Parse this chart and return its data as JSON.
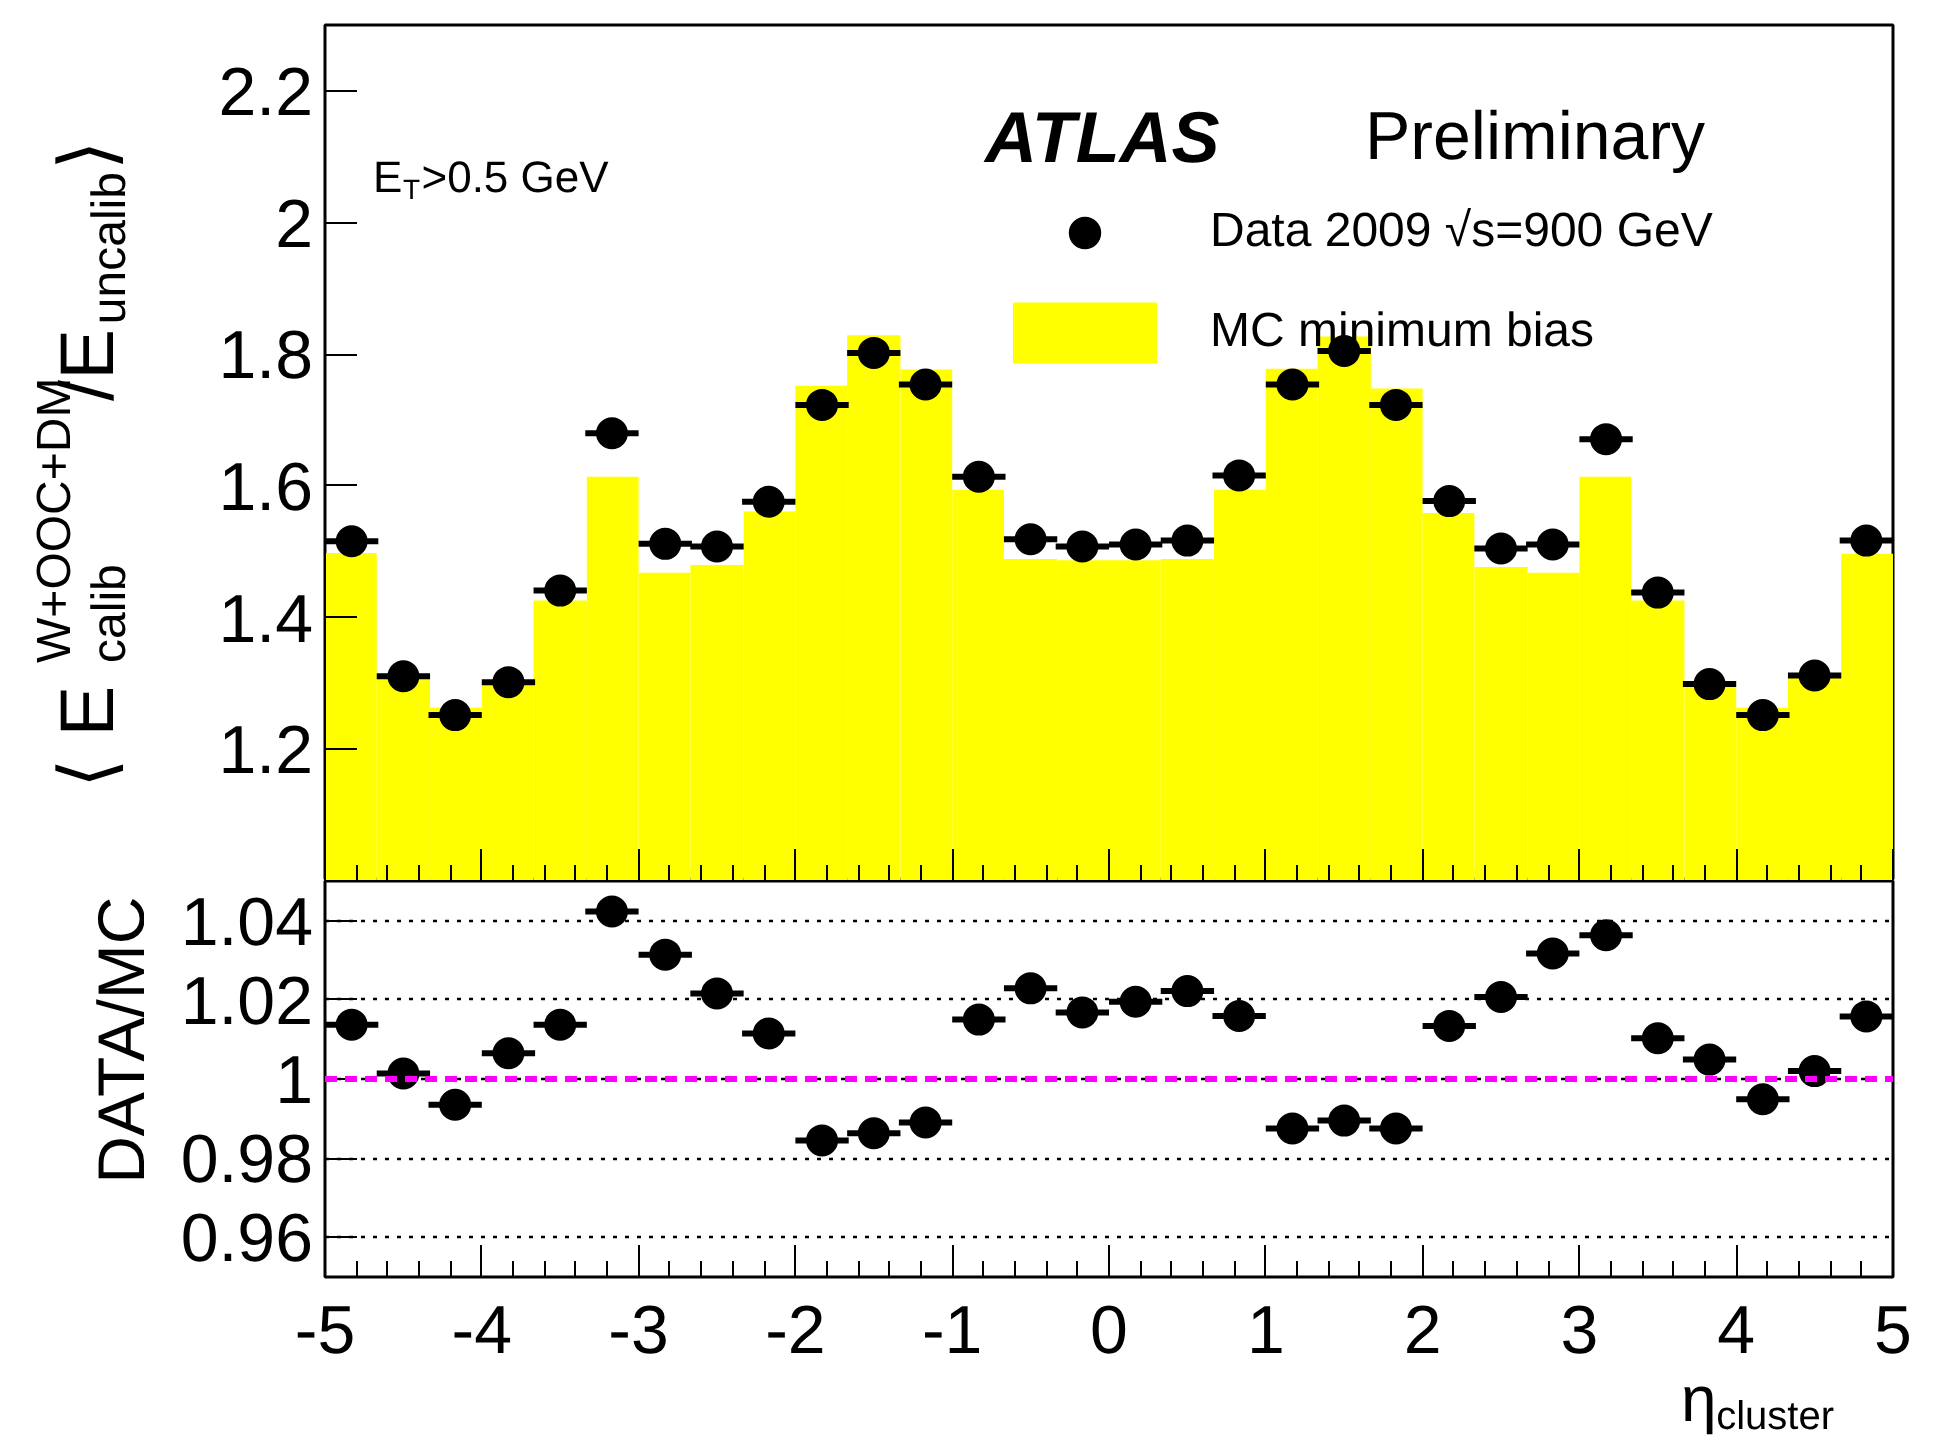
{
  "chart_data": [
    {
      "type": "histogram",
      "ylabel": "⟨ E$_{calib}$$^{W+OOC+DM}$/E$_{uncalib}$⟩",
      "annotations": [
        "ATLAS",
        "Preliminary",
        "E$_{T}$>0.5 GeV"
      ],
      "bins": [
        -5,
        -4.67,
        -4.33,
        -4,
        -3.67,
        -3.33,
        -3,
        -2.67,
        -2.33,
        -2,
        -1.67,
        -1.33,
        -1,
        -0.67,
        -0.33,
        0,
        0.33,
        0.67,
        1,
        1.33,
        1.67,
        2,
        2.33,
        2.67,
        3,
        3.33,
        3.67,
        4,
        4.33,
        4.67,
        5
      ],
      "xlim": [
        -5,
        5
      ],
      "xticks": [
        -5,
        -4,
        -3,
        -2,
        -1,
        0,
        1,
        2,
        3,
        4,
        5
      ],
      "ylim": [
        1.0,
        2.3
      ],
      "yticks": [
        1.2,
        1.4,
        1.6,
        1.8,
        2,
        2.2
      ],
      "tick_labels": "y",
      "legend": "top right",
      "series": [
        {
          "name": "Data 2009 √s=900 GeV",
          "type": "scatter",
          "marker": "circle",
          "color": "#000000",
          "x": [
            -4.83,
            -4.5,
            -4.17,
            -3.83,
            -3.5,
            -3.17,
            -2.83,
            -2.5,
            -2.17,
            -1.83,
            -1.5,
            -1.17,
            -0.83,
            -0.5,
            -0.17,
            0.17,
            0.5,
            0.83,
            1.17,
            1.5,
            1.83,
            2.17,
            2.5,
            2.83,
            3.17,
            3.5,
            3.83,
            4.17,
            4.5,
            4.83
          ],
          "values": [
            1.516,
            1.311,
            1.252,
            1.302,
            1.441,
            1.68,
            1.512,
            1.508,
            1.576,
            1.723,
            1.802,
            1.754,
            1.614,
            1.519,
            1.508,
            1.511,
            1.517,
            1.616,
            1.754,
            1.805,
            1.723,
            1.577,
            1.505,
            1.511,
            1.671,
            1.438,
            1.299,
            1.252,
            1.312,
            1.517
          ],
          "xerrors": [
            0.17,
            0.17,
            0.17,
            0.17,
            0.17,
            0.17,
            0.17,
            0.17,
            0.17,
            0.17,
            0.17,
            0.17,
            0.17,
            0.17,
            0.17,
            0.17,
            0.17,
            0.17,
            0.17,
            0.17,
            0.17,
            0.17,
            0.17,
            0.17,
            0.17,
            0.17,
            0.17,
            0.17,
            0.17,
            0.17
          ]
        },
        {
          "name": "MC minimum bias",
          "type": "histogram",
          "color": "#ffff00",
          "values": [
            1.498,
            1.311,
            1.263,
            1.305,
            1.426,
            1.614,
            1.468,
            1.48,
            1.561,
            1.752,
            1.829,
            1.777,
            1.594,
            1.489,
            1.487,
            1.487,
            1.489,
            1.594,
            1.778,
            1.827,
            1.748,
            1.559,
            1.477,
            1.468,
            1.614,
            1.426,
            1.299,
            1.263,
            1.312,
            1.497
          ]
        }
      ]
    },
    {
      "type": "scatter",
      "xlabel": "η$_{cluster}$",
      "ylabel": "DATA/MC",
      "marker": "circle",
      "color": "#000000",
      "x": [
        -4.83,
        -4.5,
        -4.17,
        -3.83,
        -3.5,
        -3.17,
        -2.83,
        -2.5,
        -2.17,
        -1.83,
        -1.5,
        -1.17,
        -0.83,
        -0.5,
        -0.17,
        0.17,
        0.5,
        0.83,
        1.17,
        1.5,
        1.83,
        2.17,
        2.5,
        2.83,
        3.17,
        3.5,
        3.83,
        4.17,
        4.5,
        4.83
      ],
      "values": [
        1.0137,
        1.0014,
        0.9935,
        1.0065,
        1.0137,
        1.0423,
        1.0314,
        1.0216,
        1.0115,
        0.9845,
        0.9863,
        0.989,
        1.015,
        1.0229,
        1.0168,
        1.0195,
        1.0222,
        1.0159,
        0.9875,
        0.9895,
        0.9875,
        1.0134,
        1.0207,
        1.0317,
        1.0363,
        1.0103,
        1.0049,
        0.9949,
        1.002,
        1.0158
      ],
      "xerrors": [
        0.17,
        0.17,
        0.17,
        0.17,
        0.17,
        0.17,
        0.17,
        0.17,
        0.17,
        0.17,
        0.17,
        0.17,
        0.17,
        0.17,
        0.17,
        0.17,
        0.17,
        0.17,
        0.17,
        0.17,
        0.17,
        0.17,
        0.17,
        0.17,
        0.17,
        0.17,
        0.17,
        0.17,
        0.17,
        0.17
      ],
      "xlim": [
        -5,
        5
      ],
      "xticks": [
        -5,
        -4,
        -3,
        -2,
        -1,
        0,
        1,
        2,
        3,
        4,
        5
      ],
      "ylim": [
        0.95,
        1.05
      ],
      "yticks": [
        0.96,
        0.98,
        1,
        1.02,
        1.04
      ],
      "grid": "y",
      "ref_lines": [
        {
          "axis": "y",
          "value": 1,
          "color": "#ff00ff",
          "line_style": "dashed"
        }
      ]
    }
  ]
}
